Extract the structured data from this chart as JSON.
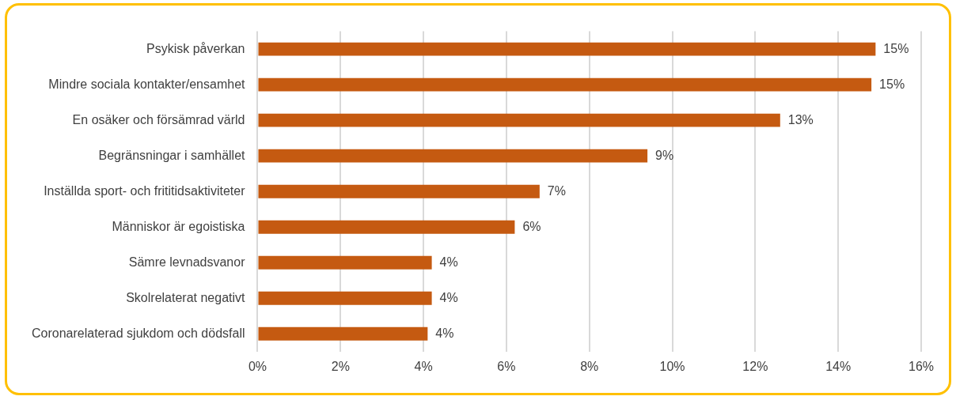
{
  "chart_data": {
    "type": "bar",
    "orientation": "horizontal",
    "categories": [
      "Psykisk påverkan",
      "Mindre sociala kontakter/ensamhet",
      "En osäker och försämrad värld",
      "Begränsningar i samhället",
      "Inställda sport- och frititidsaktiviteter",
      "Människor är egoistiska",
      "Sämre levnadsvanor",
      "Skolrelaterat negativt",
      "Coronarelaterad sjukdom och dödsfall"
    ],
    "values": [
      14.9,
      14.8,
      12.6,
      9.4,
      6.8,
      6.2,
      4.2,
      4.2,
      4.1
    ],
    "value_labels": [
      "15%",
      "15%",
      "13%",
      "9%",
      "7%",
      "6%",
      "4%",
      "4%",
      "4%"
    ],
    "color": "#c55a11",
    "xlim": [
      0,
      16
    ],
    "xticks": [
      {
        "value": 0,
        "label": "0%"
      },
      {
        "value": 2,
        "label": "2%"
      },
      {
        "value": 4,
        "label": "4%"
      },
      {
        "value": 6,
        "label": "6%"
      },
      {
        "value": 8,
        "label": "8%"
      },
      {
        "value": 10,
        "label": "10%"
      },
      {
        "value": 12,
        "label": "12%"
      },
      {
        "value": 14,
        "label": "14%"
      },
      {
        "value": 16,
        "label": "16%"
      }
    ],
    "grid": "x",
    "legend": false
  }
}
